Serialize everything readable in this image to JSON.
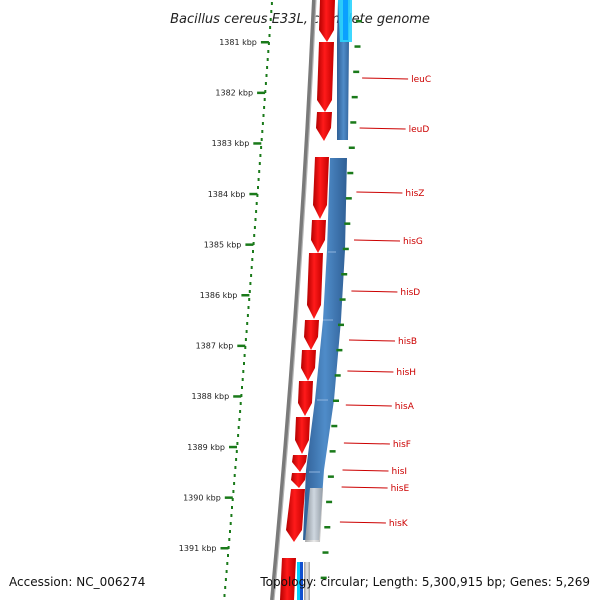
{
  "title": "Bacillus cereus E33L, complete genome",
  "accession": "Accession: NC_006274",
  "summary": "Topology: circular; Length: 5,300,915 bp; Genes: 5,269",
  "ruler": [
    "1381 kbp",
    "1382 kbp",
    "1383 kbp",
    "1384 kbp",
    "1385 kbp",
    "1386 kbp",
    "1387 kbp",
    "1388 kbp",
    "1389 kbp",
    "1390 kbp",
    "1391 kbp"
  ],
  "genes": [
    "leuC",
    "leuD",
    "hisZ",
    "hisG",
    "hisD",
    "hisB",
    "hisH",
    "hisA",
    "hisF",
    "hisI",
    "hisE",
    "hisK"
  ],
  "colors": {
    "forward_cds": "#ff0000",
    "gc_track": "#3d78b8",
    "backbone": "#888888",
    "ruler_tick": "#1a7a1a",
    "gene_label": "#cc0000"
  }
}
